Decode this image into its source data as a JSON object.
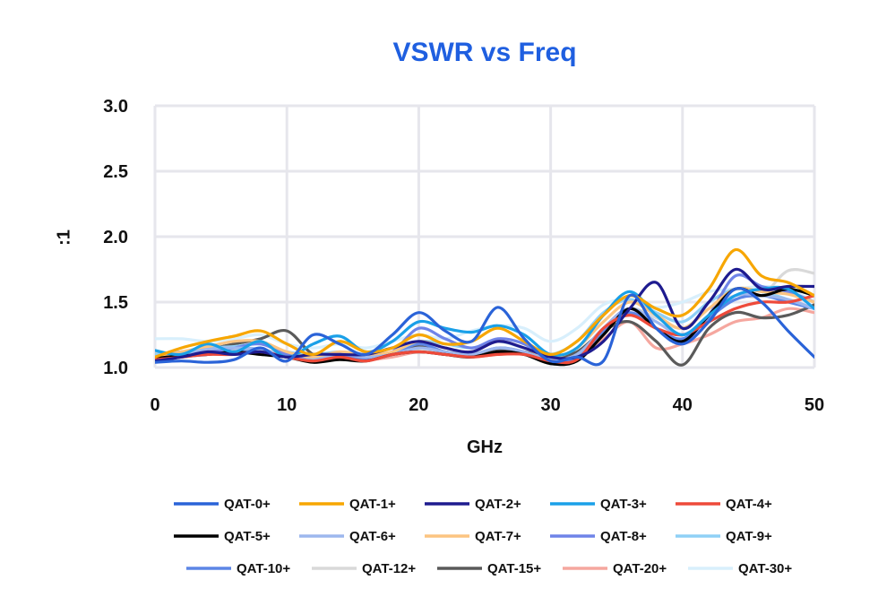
{
  "chart_data": {
    "type": "line",
    "title": "VSWR vs Freq",
    "xlabel": "GHz",
    "ylabel": ":1",
    "xlim": [
      0,
      50
    ],
    "ylim": [
      1.0,
      3.0
    ],
    "x_ticks": [
      "0",
      "10",
      "20",
      "30",
      "40",
      "50"
    ],
    "y_ticks": [
      "1.0",
      "1.5",
      "2.0",
      "2.5",
      "3.0"
    ],
    "grid": true,
    "legend_position": "bottom",
    "colors": {
      "title": "#1f5fe0",
      "grid": "#e6e6ec"
    },
    "x": [
      0,
      2,
      4,
      6,
      8,
      10,
      12,
      14,
      16,
      18,
      20,
      22,
      24,
      26,
      28,
      30,
      32,
      34,
      36,
      38,
      40,
      42,
      44,
      46,
      48,
      50
    ],
    "series": [
      {
        "name": "QAT-0+",
        "color": "#2a63d8",
        "values": [
          1.04,
          1.05,
          1.04,
          1.06,
          1.15,
          1.05,
          1.25,
          1.18,
          1.1,
          1.25,
          1.42,
          1.28,
          1.2,
          1.46,
          1.22,
          1.05,
          1.08,
          1.05,
          1.55,
          1.3,
          1.18,
          1.35,
          1.6,
          1.5,
          1.28,
          1.08
        ]
      },
      {
        "name": "QAT-1+",
        "color": "#f7a600",
        "values": [
          1.08,
          1.15,
          1.2,
          1.24,
          1.28,
          1.18,
          1.1,
          1.2,
          1.12,
          1.15,
          1.25,
          1.18,
          1.2,
          1.3,
          1.2,
          1.1,
          1.2,
          1.4,
          1.55,
          1.45,
          1.4,
          1.6,
          1.9,
          1.7,
          1.65,
          1.55
        ]
      },
      {
        "name": "QAT-2+",
        "color": "#1e1b8f",
        "values": [
          1.05,
          1.08,
          1.12,
          1.1,
          1.12,
          1.08,
          1.1,
          1.1,
          1.1,
          1.15,
          1.2,
          1.15,
          1.12,
          1.2,
          1.15,
          1.08,
          1.08,
          1.2,
          1.45,
          1.65,
          1.3,
          1.5,
          1.75,
          1.6,
          1.62,
          1.62
        ]
      },
      {
        "name": "QAT-3+",
        "color": "#1aa0e8",
        "values": [
          1.13,
          1.1,
          1.18,
          1.12,
          1.2,
          1.08,
          1.18,
          1.24,
          1.12,
          1.2,
          1.35,
          1.3,
          1.27,
          1.32,
          1.25,
          1.1,
          1.15,
          1.4,
          1.58,
          1.4,
          1.25,
          1.4,
          1.55,
          1.6,
          1.6,
          1.45
        ]
      },
      {
        "name": "QAT-4+",
        "color": "#ee4a3a",
        "values": [
          1.06,
          1.08,
          1.1,
          1.1,
          1.12,
          1.08,
          1.05,
          1.08,
          1.05,
          1.1,
          1.12,
          1.1,
          1.08,
          1.1,
          1.1,
          1.05,
          1.06,
          1.3,
          1.4,
          1.3,
          1.25,
          1.35,
          1.45,
          1.5,
          1.5,
          1.55
        ]
      },
      {
        "name": "QAT-5+",
        "color": "#000000",
        "values": [
          1.07,
          1.09,
          1.1,
          1.12,
          1.1,
          1.08,
          1.04,
          1.06,
          1.05,
          1.1,
          1.12,
          1.1,
          1.08,
          1.12,
          1.1,
          1.03,
          1.05,
          1.25,
          1.45,
          1.3,
          1.2,
          1.4,
          1.6,
          1.55,
          1.6,
          1.55
        ]
      },
      {
        "name": "QAT-6+",
        "color": "#9db7ee",
        "values": [
          1.06,
          1.1,
          1.14,
          1.15,
          1.14,
          1.08,
          1.06,
          1.1,
          1.08,
          1.1,
          1.15,
          1.12,
          1.1,
          1.15,
          1.12,
          1.06,
          1.1,
          1.3,
          1.45,
          1.35,
          1.25,
          1.4,
          1.55,
          1.55,
          1.52,
          1.45
        ]
      },
      {
        "name": "QAT-7+",
        "color": "#fcc481",
        "values": [
          1.08,
          1.12,
          1.16,
          1.2,
          1.2,
          1.12,
          1.08,
          1.12,
          1.1,
          1.12,
          1.2,
          1.15,
          1.12,
          1.2,
          1.15,
          1.08,
          1.15,
          1.35,
          1.5,
          1.4,
          1.3,
          1.45,
          1.6,
          1.58,
          1.56,
          1.5
        ]
      },
      {
        "name": "QAT-8+",
        "color": "#6f84e8",
        "values": [
          1.06,
          1.1,
          1.12,
          1.15,
          1.18,
          1.1,
          1.06,
          1.1,
          1.08,
          1.12,
          1.3,
          1.22,
          1.15,
          1.22,
          1.18,
          1.06,
          1.1,
          1.3,
          1.45,
          1.3,
          1.2,
          1.4,
          1.7,
          1.62,
          1.58,
          1.5
        ]
      },
      {
        "name": "QAT-9+",
        "color": "#8fd0f6",
        "values": [
          1.1,
          1.12,
          1.15,
          1.16,
          1.18,
          1.12,
          1.1,
          1.12,
          1.1,
          1.12,
          1.2,
          1.18,
          1.15,
          1.2,
          1.15,
          1.1,
          1.2,
          1.42,
          1.52,
          1.42,
          1.35,
          1.5,
          1.6,
          1.58,
          1.52,
          1.45
        ]
      },
      {
        "name": "QAT-10+",
        "color": "#5d86e6",
        "values": [
          1.05,
          1.08,
          1.1,
          1.12,
          1.12,
          1.08,
          1.05,
          1.08,
          1.06,
          1.1,
          1.18,
          1.12,
          1.1,
          1.15,
          1.12,
          1.05,
          1.08,
          1.28,
          1.42,
          1.3,
          1.22,
          1.38,
          1.52,
          1.55,
          1.5,
          1.45
        ]
      },
      {
        "name": "QAT-12+",
        "color": "#d9d9d9",
        "values": [
          1.08,
          1.1,
          1.12,
          1.14,
          1.14,
          1.1,
          1.06,
          1.08,
          1.06,
          1.1,
          1.14,
          1.1,
          1.08,
          1.12,
          1.1,
          1.06,
          1.1,
          1.3,
          1.45,
          1.38,
          1.3,
          1.45,
          1.55,
          1.55,
          1.74,
          1.72
        ]
      },
      {
        "name": "QAT-15+",
        "color": "#5a5a5a",
        "values": [
          1.1,
          1.12,
          1.14,
          1.18,
          1.22,
          1.28,
          1.1,
          1.08,
          1.06,
          1.12,
          1.16,
          1.12,
          1.1,
          1.14,
          1.12,
          1.08,
          1.12,
          1.28,
          1.35,
          1.2,
          1.02,
          1.3,
          1.42,
          1.38,
          1.4,
          1.48
        ]
      },
      {
        "name": "QAT-20+",
        "color": "#f5a79f",
        "values": [
          1.05,
          1.08,
          1.1,
          1.12,
          1.14,
          1.08,
          1.05,
          1.08,
          1.06,
          1.08,
          1.12,
          1.1,
          1.08,
          1.1,
          1.1,
          1.05,
          1.1,
          1.22,
          1.35,
          1.15,
          1.18,
          1.25,
          1.35,
          1.38,
          1.45,
          1.42
        ]
      },
      {
        "name": "QAT-30+",
        "color": "#d8effc",
        "values": [
          1.22,
          1.22,
          1.2,
          1.22,
          1.25,
          1.18,
          1.15,
          1.18,
          1.15,
          1.2,
          1.25,
          1.22,
          1.28,
          1.32,
          1.3,
          1.2,
          1.3,
          1.48,
          1.52,
          1.46,
          1.5,
          1.58,
          1.6,
          1.62,
          1.6,
          1.5
        ]
      }
    ]
  }
}
